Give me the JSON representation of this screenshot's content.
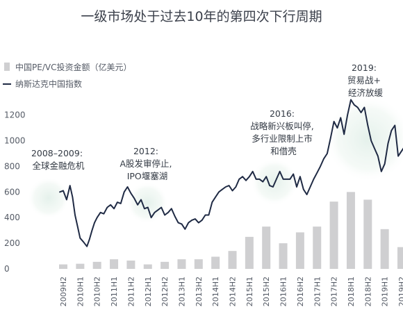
{
  "chart_data": {
    "type": "bar",
    "title": "一级市场处于过去10年的第四次下行周期",
    "categories": [
      "2009H2",
      "2010H1",
      "2010H2",
      "2011H1",
      "2011H2",
      "2012H1",
      "2012H2",
      "2013H1",
      "2013H2",
      "2014H1",
      "2014H2",
      "2015H1",
      "2015H2",
      "2016H1",
      "2016H2",
      "2017H1",
      "2017H2",
      "2018H1",
      "2018H2",
      "2019H1",
      "2019H2"
    ],
    "ylim": [
      0,
      1350
    ],
    "yticks": [
      0,
      200,
      400,
      600,
      800,
      1000,
      1200
    ],
    "grid": false,
    "legend_position": "top-left",
    "series": [
      {
        "name": "中国PE/VC投资金额（亿美元）",
        "type": "bar",
        "color": "#cfcfd1",
        "values": [
          35,
          40,
          55,
          75,
          65,
          35,
          55,
          75,
          75,
          95,
          140,
          250,
          330,
          200,
          285,
          330,
          525,
          600,
          540,
          310,
          170
        ]
      },
      {
        "name": "纳斯达克中国指数",
        "type": "line",
        "color": "#1f2a44",
        "x": [
          -0.2,
          0,
          0.2,
          0.4,
          0.55,
          0.7,
          0.85,
          1.0,
          1.2,
          1.4,
          1.55,
          1.7,
          1.85,
          2.0,
          2.2,
          2.4,
          2.6,
          2.8,
          3.0,
          3.2,
          3.4,
          3.6,
          3.8,
          4.0,
          4.2,
          4.4,
          4.6,
          4.8,
          5.0,
          5.2,
          5.4,
          5.6,
          5.8,
          6.0,
          6.2,
          6.4,
          6.6,
          6.8,
          7.0,
          7.2,
          7.4,
          7.6,
          7.8,
          8.0,
          8.2,
          8.4,
          8.6,
          8.8,
          9.0,
          9.2,
          9.4,
          9.6,
          9.8,
          10.0,
          10.2,
          10.4,
          10.6,
          10.8,
          11.0,
          11.2,
          11.4,
          11.6,
          11.8,
          12.0,
          12.2,
          12.4,
          12.6,
          12.8,
          13.0,
          13.2,
          13.4,
          13.6,
          13.8,
          14.0,
          14.2,
          14.4,
          14.6,
          14.8,
          15.0,
          15.2,
          15.4,
          15.6,
          15.8,
          16.0,
          16.2,
          16.4,
          16.6,
          16.8,
          17.0,
          17.2,
          17.4,
          17.6,
          17.8,
          18.0,
          18.2,
          18.4,
          18.6,
          18.8,
          19.0,
          19.2,
          19.4,
          19.6,
          19.8,
          20.0,
          20.2,
          20.4
        ],
        "values": [
          600,
          610,
          540,
          650,
          560,
          420,
          330,
          240,
          210,
          175,
          230,
          300,
          360,
          400,
          440,
          430,
          480,
          500,
          470,
          520,
          510,
          600,
          640,
          590,
          550,
          500,
          540,
          470,
          480,
          400,
          440,
          460,
          480,
          420,
          440,
          470,
          410,
          360,
          350,
          310,
          360,
          380,
          390,
          360,
          380,
          420,
          420,
          520,
          560,
          600,
          620,
          640,
          650,
          610,
          640,
          700,
          720,
          690,
          720,
          760,
          700,
          700,
          680,
          720,
          650,
          640,
          700,
          760,
          700,
          700,
          700,
          740,
          640,
          720,
          620,
          580,
          640,
          700,
          750,
          800,
          860,
          900,
          1020,
          1150,
          1100,
          1180,
          1050,
          1200,
          1320,
          1280,
          1260,
          1220,
          1260,
          1120,
          1000,
          940,
          880,
          760,
          820,
          980,
          1080,
          1120,
          880,
          920,
          960,
          900
        ]
      }
    ],
    "annotations": [
      {
        "lines": [
          "2008–2009:",
          "全球金融危机"
        ]
      },
      {
        "lines": [
          "2012:",
          "A股发审停止,",
          "IPO堰塞湖"
        ]
      },
      {
        "lines": [
          "2016:",
          "战略新兴板叫停,",
          "多行业限制上市",
          "和借壳"
        ]
      },
      {
        "lines": [
          "2019:",
          "贸易战+",
          "经济放缓"
        ]
      }
    ]
  }
}
